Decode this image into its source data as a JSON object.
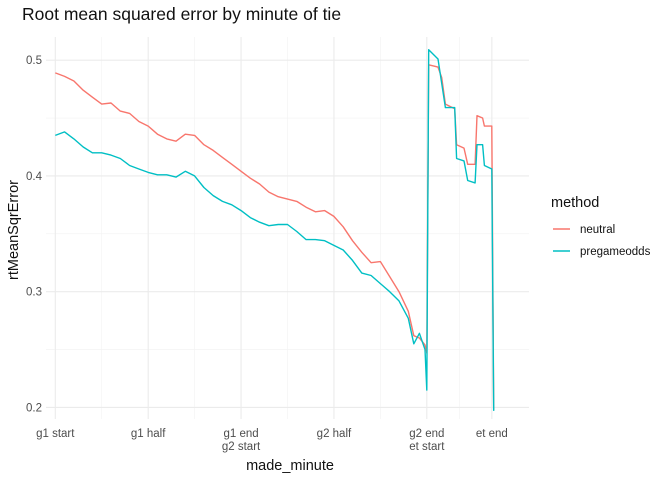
{
  "chart_data": {
    "type": "line",
    "title": "Root mean squared error by minute of tie",
    "xlabel": "made_minute",
    "ylabel": "rtMeanSqrError",
    "xlim": [
      -5,
      255
    ],
    "ylim": [
      0.19,
      0.52
    ],
    "grid": true,
    "legend_position": "right",
    "legend_title": "method",
    "x_ticks": [
      {
        "value": 0,
        "label": "g1 start"
      },
      {
        "value": 50,
        "label": "g1 half"
      },
      {
        "value": 100,
        "label": "g1 end\ng2 start"
      },
      {
        "value": 150,
        "label": "g2 half"
      },
      {
        "value": 200,
        "label": "g2 end\net start"
      },
      {
        "value": 235,
        "label": "et end"
      }
    ],
    "y_ticks": [
      0.2,
      0.3,
      0.4,
      0.5
    ],
    "series": [
      {
        "name": "neutral",
        "color": "#F8766D",
        "points": [
          [
            0,
            0.489
          ],
          [
            5,
            0.486
          ],
          [
            10,
            0.482
          ],
          [
            15,
            0.474
          ],
          [
            20,
            0.468
          ],
          [
            25,
            0.462
          ],
          [
            30,
            0.463
          ],
          [
            35,
            0.456
          ],
          [
            40,
            0.454
          ],
          [
            45,
            0.447
          ],
          [
            50,
            0.443
          ],
          [
            55,
            0.436
          ],
          [
            60,
            0.432
          ],
          [
            65,
            0.43
          ],
          [
            70,
            0.436
          ],
          [
            75,
            0.435
          ],
          [
            80,
            0.427
          ],
          [
            85,
            0.422
          ],
          [
            90,
            0.416
          ],
          [
            95,
            0.41
          ],
          [
            100,
            0.404
          ],
          [
            105,
            0.398
          ],
          [
            110,
            0.393
          ],
          [
            115,
            0.386
          ],
          [
            120,
            0.382
          ],
          [
            125,
            0.38
          ],
          [
            130,
            0.378
          ],
          [
            135,
            0.373
          ],
          [
            140,
            0.369
          ],
          [
            145,
            0.37
          ],
          [
            150,
            0.365
          ],
          [
            155,
            0.356
          ],
          [
            160,
            0.344
          ],
          [
            165,
            0.334
          ],
          [
            170,
            0.325
          ],
          [
            175,
            0.326
          ],
          [
            180,
            0.313
          ],
          [
            185,
            0.3
          ],
          [
            190,
            0.283
          ],
          [
            193,
            0.262
          ],
          [
            196,
            0.26
          ],
          [
            199,
            0.254
          ],
          [
            200,
            0.247
          ],
          [
            201,
            0.496
          ],
          [
            206,
            0.494
          ],
          [
            208,
            0.485
          ],
          [
            210,
            0.462
          ],
          [
            215,
            0.458
          ],
          [
            216,
            0.427
          ],
          [
            220,
            0.424
          ],
          [
            222,
            0.41
          ],
          [
            226,
            0.41
          ],
          [
            227,
            0.452
          ],
          [
            230,
            0.45
          ],
          [
            231,
            0.443
          ],
          [
            235,
            0.443
          ],
          [
            236,
            0.198
          ]
        ]
      },
      {
        "name": "pregameodds",
        "color": "#00BFC4",
        "points": [
          [
            0,
            0.435
          ],
          [
            5,
            0.438
          ],
          [
            10,
            0.432
          ],
          [
            15,
            0.425
          ],
          [
            20,
            0.42
          ],
          [
            25,
            0.42
          ],
          [
            30,
            0.418
          ],
          [
            35,
            0.415
          ],
          [
            40,
            0.409
          ],
          [
            45,
            0.406
          ],
          [
            50,
            0.403
          ],
          [
            55,
            0.401
          ],
          [
            60,
            0.401
          ],
          [
            65,
            0.399
          ],
          [
            70,
            0.404
          ],
          [
            75,
            0.4
          ],
          [
            80,
            0.39
          ],
          [
            85,
            0.383
          ],
          [
            90,
            0.378
          ],
          [
            95,
            0.375
          ],
          [
            100,
            0.37
          ],
          [
            105,
            0.364
          ],
          [
            110,
            0.36
          ],
          [
            115,
            0.357
          ],
          [
            120,
            0.358
          ],
          [
            125,
            0.358
          ],
          [
            130,
            0.352
          ],
          [
            135,
            0.345
          ],
          [
            140,
            0.345
          ],
          [
            145,
            0.344
          ],
          [
            150,
            0.34
          ],
          [
            155,
            0.336
          ],
          [
            160,
            0.327
          ],
          [
            165,
            0.316
          ],
          [
            170,
            0.314
          ],
          [
            175,
            0.307
          ],
          [
            180,
            0.3
          ],
          [
            185,
            0.292
          ],
          [
            190,
            0.277
          ],
          [
            193,
            0.255
          ],
          [
            196,
            0.264
          ],
          [
            199,
            0.25
          ],
          [
            200,
            0.215
          ],
          [
            201,
            0.509
          ],
          [
            206,
            0.501
          ],
          [
            208,
            0.48
          ],
          [
            210,
            0.459
          ],
          [
            215,
            0.459
          ],
          [
            216,
            0.415
          ],
          [
            220,
            0.413
          ],
          [
            222,
            0.396
          ],
          [
            226,
            0.394
          ],
          [
            227,
            0.427
          ],
          [
            230,
            0.427
          ],
          [
            231,
            0.409
          ],
          [
            235,
            0.406
          ],
          [
            236,
            0.197
          ]
        ]
      }
    ]
  }
}
